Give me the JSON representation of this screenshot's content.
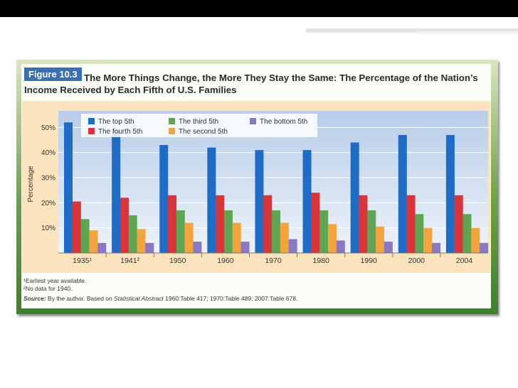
{
  "figure_label": "Figure 10.3",
  "figure_title": "The More Things Change, the More They Stay the Same: The Percentage of the Nation’s Income Received by Each Fifth of U.S. Families",
  "colors": {
    "top_5th": "#1f6cc6",
    "fourth_5th": "#d8343a",
    "third_5th": "#5fa654",
    "second_5th": "#f4a43c",
    "bottom_5th": "#8b78c4",
    "plot_background": "#c5d7ee",
    "chart_background": "#fbe3bd"
  },
  "chart_data": {
    "type": "bar",
    "categories": [
      "1935¹",
      "1941²",
      "1950",
      "1960",
      "1970",
      "1980",
      "1990",
      "2000",
      "2004"
    ],
    "ylabel": "Percentage",
    "yticks": [
      "10%",
      "20%",
      "30%",
      "40%",
      "50%"
    ],
    "ylim": [
      0,
      60
    ],
    "grid": true,
    "legend_position": "top",
    "series": [
      {
        "name": "The top 5th",
        "values": [
          52,
          49,
          43,
          42,
          41,
          41,
          44,
          47,
          47
        ]
      },
      {
        "name": "The fourth 5th",
        "values": [
          20.5,
          22,
          23,
          23,
          23,
          24,
          23,
          23,
          23
        ]
      },
      {
        "name": "The third 5th",
        "values": [
          13.5,
          15,
          17,
          17,
          17,
          17,
          17,
          15.5,
          15.5
        ]
      },
      {
        "name": "The second 5th",
        "values": [
          9,
          9.5,
          12,
          12,
          12,
          11.5,
          10.5,
          10,
          10
        ]
      },
      {
        "name": "The bottom 5th",
        "values": [
          4,
          4,
          4.5,
          4.5,
          5.5,
          5,
          4.5,
          4,
          4
        ]
      }
    ]
  },
  "notes": {
    "note1": "¹Earliest year available.",
    "note2": "²No data for 1940.",
    "source_label": "Source:",
    "source_pre": "By the author. Based on",
    "source_italic": "Statistical Abstract",
    "source_post": "1960:Table 417; 1970:Table 489; 2007:Table 678."
  }
}
